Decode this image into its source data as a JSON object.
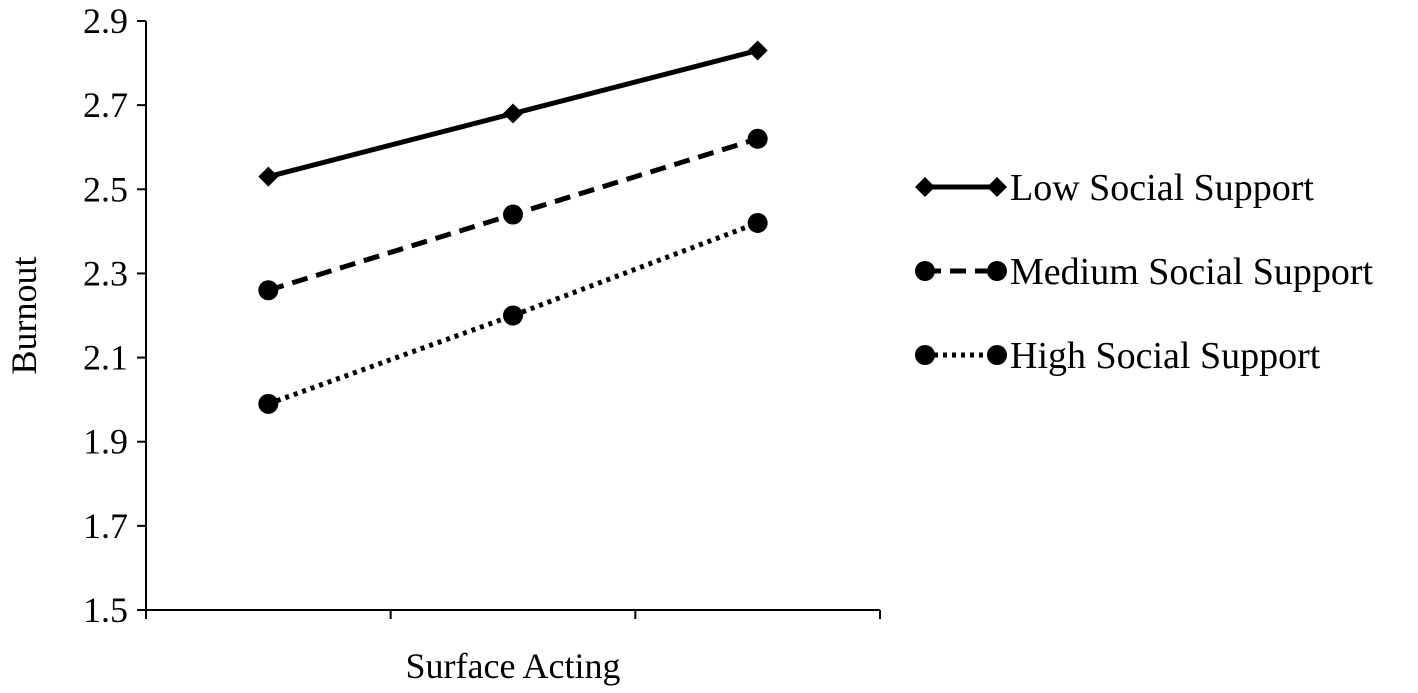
{
  "chart_data": {
    "type": "line",
    "xlabel": "Surface Acting",
    "ylabel": "Burnout",
    "ylim": [
      1.5,
      2.9
    ],
    "yticks": [
      "1.5",
      "1.7",
      "1.9",
      "2.1",
      "2.3",
      "2.5",
      "2.7",
      "2.9"
    ],
    "x": [
      1,
      2,
      3
    ],
    "grid": false,
    "legend_position": "right",
    "series": [
      {
        "name": "Low Social Support",
        "values": [
          2.53,
          2.68,
          2.83
        ],
        "marker": "diamond",
        "dash": "solid",
        "color": "#000000"
      },
      {
        "name": "Medium Social Support",
        "values": [
          2.26,
          2.44,
          2.62
        ],
        "marker": "circle",
        "dash": "dashed",
        "color": "#000000"
      },
      {
        "name": "High Social Support",
        "values": [
          1.99,
          2.2,
          2.42
        ],
        "marker": "circle",
        "dash": "dotted",
        "color": "#000000"
      }
    ]
  }
}
